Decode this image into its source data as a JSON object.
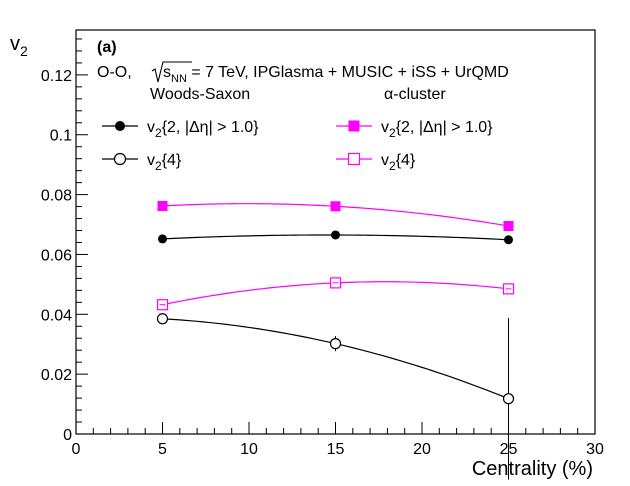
{
  "chart_data": {
    "type": "line",
    "panel_label": "(a)",
    "system_label": "O-O,",
    "sqrt_symbol": "√",
    "energy_var": "s",
    "energy_sub": "NN",
    "energy_text": " = 7 TeV, IPGlasma + MUSIC + iSS + UrQMD",
    "group_left_title": "Woods-Saxon",
    "group_right_title": "α-cluster",
    "ylabel_main": "v",
    "ylabel_sub": "2",
    "xlabel": "Centrality (%)",
    "xlim": [
      0,
      30
    ],
    "ylim": [
      0,
      0.135
    ],
    "x_ticks": [
      0,
      5,
      10,
      15,
      20,
      25,
      30
    ],
    "x_tick_labels": [
      "0",
      "5",
      "10",
      "15",
      "20",
      "25",
      "30"
    ],
    "y_ticks": [
      0,
      0.02,
      0.04,
      0.06,
      0.08,
      0.1,
      0.12
    ],
    "y_tick_labels": [
      "0",
      "0.02",
      "0.04",
      "0.06",
      "0.08",
      "0.1",
      "0.12"
    ],
    "series": [
      {
        "name_main": "v",
        "name_sub": "2",
        "name_rest": "{2, |Δη| > 1.0}",
        "group": "Woods-Saxon",
        "marker": "filled-circle",
        "color": "#000000",
        "x": [
          5,
          15,
          25
        ],
        "y": [
          0.0652,
          0.0665,
          0.0649
        ],
        "err": [
          0.0004,
          0.0004,
          0.0004
        ]
      },
      {
        "name_main": "v",
        "name_sub": "2",
        "name_rest": "{4}",
        "group": "Woods-Saxon",
        "marker": "open-circle",
        "color": "#000000",
        "x": [
          5,
          15,
          25
        ],
        "y": [
          0.0385,
          0.0302,
          0.0118
        ],
        "err": [
          0.0008,
          0.0025,
          0.027
        ]
      },
      {
        "name_main": "v",
        "name_sub": "2",
        "name_rest": "{2, |Δη| > 1.0}",
        "group": "α-cluster",
        "marker": "filled-square",
        "color": "#ff00ff",
        "x": [
          5,
          15,
          25
        ],
        "y": [
          0.0762,
          0.0761,
          0.0695
        ],
        "err": [
          0.0004,
          0.0004,
          0.0004
        ]
      },
      {
        "name_main": "v",
        "name_sub": "2",
        "name_rest": "{4}",
        "group": "α-cluster",
        "marker": "open-square",
        "color": "#ff00ff",
        "x": [
          5,
          15,
          25
        ],
        "y": [
          0.0432,
          0.0505,
          0.0485
        ],
        "err": [
          0.0012,
          0.0012,
          0.0015
        ]
      }
    ]
  }
}
